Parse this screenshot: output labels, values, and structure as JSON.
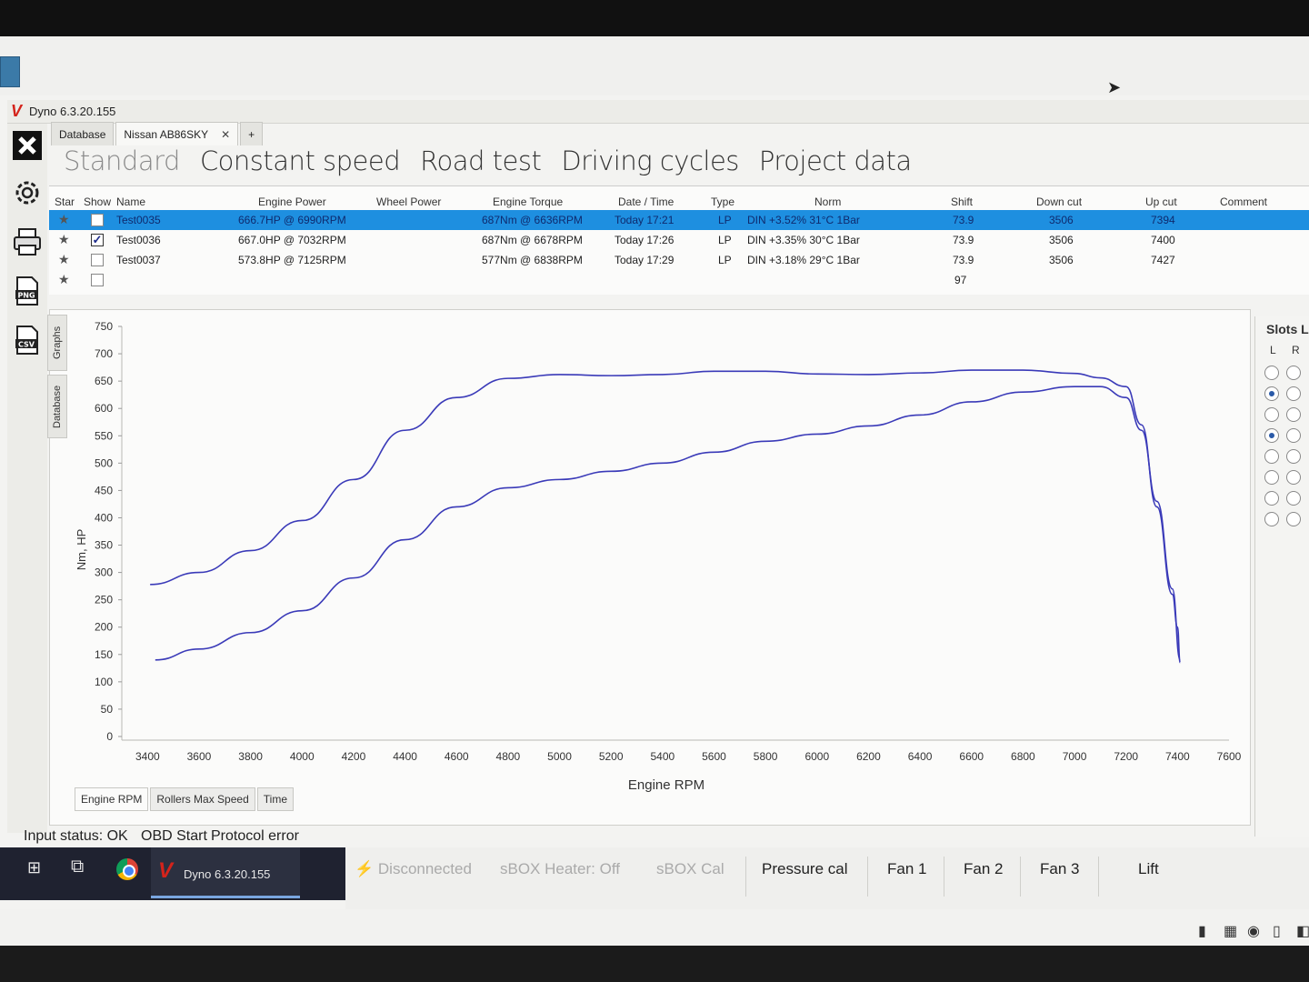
{
  "window": {
    "title": "Dyno 6.3.20.155",
    "logo": "V"
  },
  "tabs": [
    {
      "label": "Database",
      "closable": false
    },
    {
      "label": "Nissan AB86SKY",
      "closable": true,
      "close": "✕"
    },
    {
      "label": "+",
      "closable": false
    }
  ],
  "modes": [
    "Standard",
    "Constant speed",
    "Road test",
    "Driving cycles",
    "Project data"
  ],
  "left_tools": [
    "close-icon",
    "gear-icon",
    "print-icon",
    "png-export-icon",
    "csv-export-icon"
  ],
  "tool_labels": {
    "png": "PNG",
    "csv": "CSV"
  },
  "results": {
    "columns": [
      "Star",
      "Show",
      "Name",
      "Engine Power",
      "Wheel Power",
      "Engine Torque",
      "Date / Time",
      "Type",
      "Norm",
      "Shift",
      "Down cut",
      "Up cut",
      "Comment"
    ],
    "rows": [
      {
        "star": "★",
        "show": false,
        "name": "Test0035",
        "engine_power": "666.7HP @ 6990RPM",
        "wheel_power": "",
        "engine_torque": "687Nm @ 6636RPM",
        "datetime": "Today 17:21",
        "type": "LP",
        "norm": "DIN +3.52%  31°C  1Bar",
        "shift": "73.9",
        "down_cut": "3506",
        "up_cut": "7394",
        "comment": ""
      },
      {
        "star": "★",
        "show": true,
        "name": "Test0036",
        "engine_power": "667.0HP @  7032RPM",
        "wheel_power": "",
        "engine_torque": "687Nm @ 6678RPM",
        "datetime": "Today 17:26",
        "type": "LP",
        "norm": "DIN +3.35%  30°C  1Bar",
        "shift": "73.9",
        "down_cut": "3506",
        "up_cut": "7400",
        "comment": ""
      },
      {
        "star": "★",
        "show": false,
        "name": "Test0037",
        "engine_power": "573.8HP @  7125RPM",
        "wheel_power": "",
        "engine_torque": "577Nm @ 6838RPM",
        "datetime": "Today 17:29",
        "type": "LP",
        "norm": "DIN +3.18%  29°C  1Bar",
        "shift": "73.9",
        "down_cut": "3506",
        "up_cut": "7427",
        "comment": ""
      },
      {
        "star": "★",
        "show": false,
        "name": "",
        "engine_power": "",
        "wheel_power": "",
        "engine_torque": "",
        "datetime": "",
        "type": "",
        "norm": "",
        "shift": "97",
        "down_cut": "",
        "up_cut": "",
        "comment": ""
      }
    ]
  },
  "side_tabs": [
    "Graphs",
    "Database"
  ],
  "bottom_tabs": [
    "Engine RPM",
    "Rollers Max Speed",
    "Time"
  ],
  "slots": {
    "title": "Slots L",
    "left": "L",
    "right": "R"
  },
  "chart_data": {
    "type": "line",
    "xlabel": "Engine RPM",
    "ylabel": "Nm, HP",
    "xlim": [
      3300,
      7600
    ],
    "ylim": [
      0,
      750
    ],
    "xticks": [
      3400,
      3600,
      3800,
      4000,
      4200,
      4400,
      4600,
      4800,
      5000,
      5200,
      5400,
      5600,
      5800,
      6000,
      6200,
      6400,
      6600,
      6800,
      7000,
      7200,
      7400,
      7600
    ],
    "yticks": [
      0,
      50,
      100,
      150,
      200,
      250,
      300,
      350,
      400,
      450,
      500,
      550,
      600,
      650,
      700,
      750
    ],
    "series": [
      {
        "color": "#3a3ab8",
        "points": [
          [
            3410,
            278
          ],
          [
            3600,
            300
          ],
          [
            3800,
            340
          ],
          [
            4000,
            395
          ],
          [
            4200,
            470
          ],
          [
            4400,
            560
          ],
          [
            4600,
            620
          ],
          [
            4800,
            655
          ],
          [
            5000,
            662
          ],
          [
            5200,
            660
          ],
          [
            5400,
            662
          ],
          [
            5600,
            668
          ],
          [
            5800,
            668
          ],
          [
            6000,
            663
          ],
          [
            6200,
            662
          ],
          [
            6400,
            665
          ],
          [
            6600,
            670
          ],
          [
            6800,
            670
          ],
          [
            7000,
            664
          ],
          [
            7100,
            656
          ],
          [
            7200,
            640
          ],
          [
            7260,
            570
          ],
          [
            7320,
            420
          ],
          [
            7380,
            260
          ],
          [
            7400,
            200
          ],
          [
            7410,
            135
          ]
        ]
      },
      {
        "color": "#3a3ab8",
        "points": [
          [
            3430,
            140
          ],
          [
            3600,
            160
          ],
          [
            3800,
            190
          ],
          [
            4000,
            230
          ],
          [
            4200,
            290
          ],
          [
            4400,
            360
          ],
          [
            4600,
            420
          ],
          [
            4800,
            455
          ],
          [
            5000,
            470
          ],
          [
            5200,
            485
          ],
          [
            5400,
            500
          ],
          [
            5600,
            520
          ],
          [
            5800,
            540
          ],
          [
            6000,
            553
          ],
          [
            6200,
            568
          ],
          [
            6400,
            588
          ],
          [
            6600,
            612
          ],
          [
            6800,
            630
          ],
          [
            7000,
            640
          ],
          [
            7100,
            640
          ],
          [
            7200,
            620
          ],
          [
            7260,
            560
          ],
          [
            7320,
            430
          ],
          [
            7380,
            270
          ],
          [
            7410,
            140
          ]
        ]
      }
    ]
  },
  "status": {
    "input_status": "Input status: OK",
    "obd_start": "OBD Start",
    "protocol_error": "Protocol error"
  },
  "controls": {
    "disconnected": "⚡ Disconnected",
    "sbox_heater": "sBOX Heater: Off",
    "sbox_cal": "sBOX Cal",
    "pressure_cal": "Pressure cal",
    "fan1": "Fan 1",
    "fan2": "Fan 2",
    "fan3": "Fan 3",
    "lift": "Lift"
  },
  "taskbar": {
    "app_label": "Dyno 6.3.20.155",
    "start": "⊞",
    "taskview": "⧉"
  }
}
